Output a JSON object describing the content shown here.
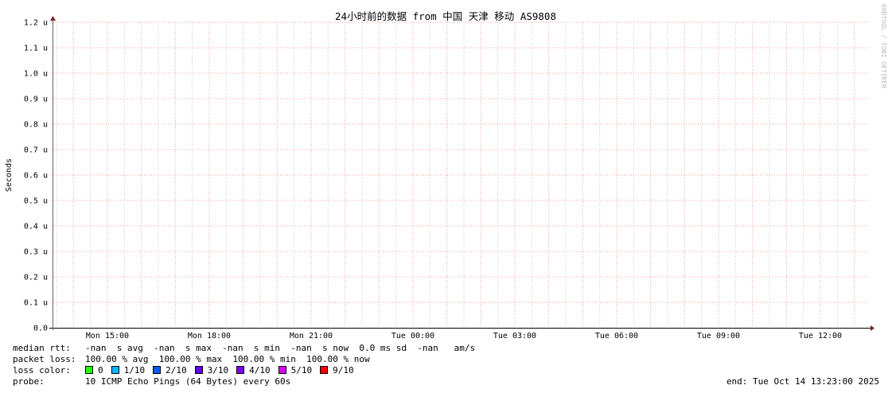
{
  "chart_data": {
    "type": "line",
    "title": "24小时前的数据 from 中国 天津 移动 AS9808",
    "ylabel": "Seconds",
    "watermark": "RRDTOOL / TOBI OETIKER",
    "ylim": [
      0,
      1.2
    ],
    "yunit": "u",
    "yticks": [
      "0.0",
      "0.1 u",
      "0.2 u",
      "0.3 u",
      "0.4 u",
      "0.5 u",
      "0.6 u",
      "0.7 u",
      "0.8 u",
      "0.9 u",
      "1.0 u",
      "1.1 u",
      "1.2 u"
    ],
    "xlim": [
      "Mon 13:23",
      "Tue 13:23"
    ],
    "xticks": [
      "Mon 15:00",
      "Mon 18:00",
      "Mon 21:00",
      "Tue 00:00",
      "Tue 03:00",
      "Tue 06:00",
      "Tue 09:00",
      "Tue 12:00"
    ],
    "grid": true,
    "series": [],
    "colors": {
      "major_grid": "#f4a0a0",
      "minor_grid": "#c8c8c8",
      "axis": "#000000",
      "arrow": "#7f1f1f"
    }
  },
  "legend": {
    "median_rtt": {
      "label": "median rtt:",
      "text": "-nan  s avg  -nan  s max  -nan  s min  -nan  s now  0.0 ms sd  -nan   am/s"
    },
    "packet_loss": {
      "label": "packet loss:",
      "text": "100.00 % avg  100.00 % max  100.00 % min  100.00 % now"
    },
    "loss_color": {
      "label": "loss color:",
      "items": [
        {
          "label": "0",
          "color": "#26ff00"
        },
        {
          "label": "1/10",
          "color": "#00b8ff"
        },
        {
          "label": "2/10",
          "color": "#0059ff"
        },
        {
          "label": "3/10",
          "color": "#5e00ff"
        },
        {
          "label": "4/10",
          "color": "#7e00ff"
        },
        {
          "label": "5/10",
          "color": "#dd00ff"
        },
        {
          "label": "9/10",
          "color": "#ff0000"
        }
      ]
    },
    "probe": {
      "label": "probe:",
      "text": "10 ICMP Echo Pings (64 Bytes) every 60s"
    },
    "end": "end: Tue Oct 14 13:23:00 2025"
  }
}
